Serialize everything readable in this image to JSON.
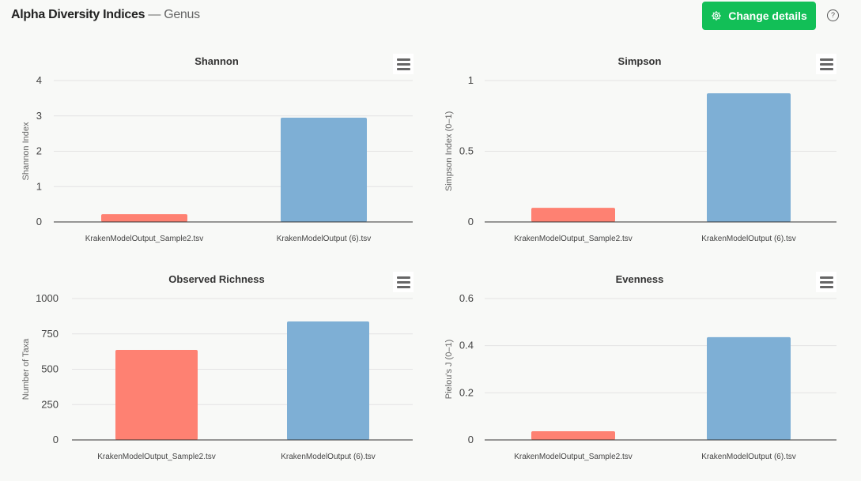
{
  "header": {
    "title": "Alpha Diversity Indices",
    "separator": "—",
    "subtitle": "Genus",
    "change_button": "Change details",
    "change_icon": "gear-icon",
    "help_icon": "question-circle-icon",
    "help_glyph": "?",
    "accent": "#12bf57"
  },
  "colors": {
    "sample2": "#fe8172",
    "sample6": "#7eafd5"
  },
  "chart_data": [
    {
      "type": "bar",
      "title": "Shannon",
      "ylabel": "Shannon Index",
      "categories": [
        "KrakenModelOutput_Sample2.tsv",
        "KrakenModelOutput (6).tsv"
      ],
      "values": [
        0.22,
        2.95
      ],
      "ylim": [
        0,
        4
      ],
      "ticks": [
        "0",
        "1",
        "2",
        "3",
        "4"
      ],
      "grid": true
    },
    {
      "type": "bar",
      "title": "Simpson",
      "ylabel": "Simpson Index (0–1)",
      "categories": [
        "KrakenModelOutput_Sample2.tsv",
        "KrakenModelOutput (6).tsv"
      ],
      "values": [
        0.1,
        0.91
      ],
      "ylim": [
        0,
        1
      ],
      "ticks": [
        "0",
        "0.5",
        "1"
      ],
      "grid": true
    },
    {
      "type": "bar",
      "title": "Observed Richness",
      "ylabel": "Number of Taxa",
      "categories": [
        "KrakenModelOutput_Sample2.tsv",
        "KrakenModelOutput (6).tsv"
      ],
      "values": [
        637,
        838
      ],
      "ylim": [
        0,
        1000
      ],
      "ticks": [
        "0",
        "250",
        "500",
        "750",
        "1000"
      ],
      "grid": true
    },
    {
      "type": "bar",
      "title": "Evenness",
      "ylabel": "Pielou's J (0–1)",
      "categories": [
        "KrakenModelOutput_Sample2.tsv",
        "KrakenModelOutput (6).tsv"
      ],
      "values": [
        0.037,
        0.436
      ],
      "ylim": [
        0,
        0.6
      ],
      "ticks": [
        "0",
        "0.2",
        "0.4",
        "0.6"
      ],
      "grid": true
    }
  ]
}
